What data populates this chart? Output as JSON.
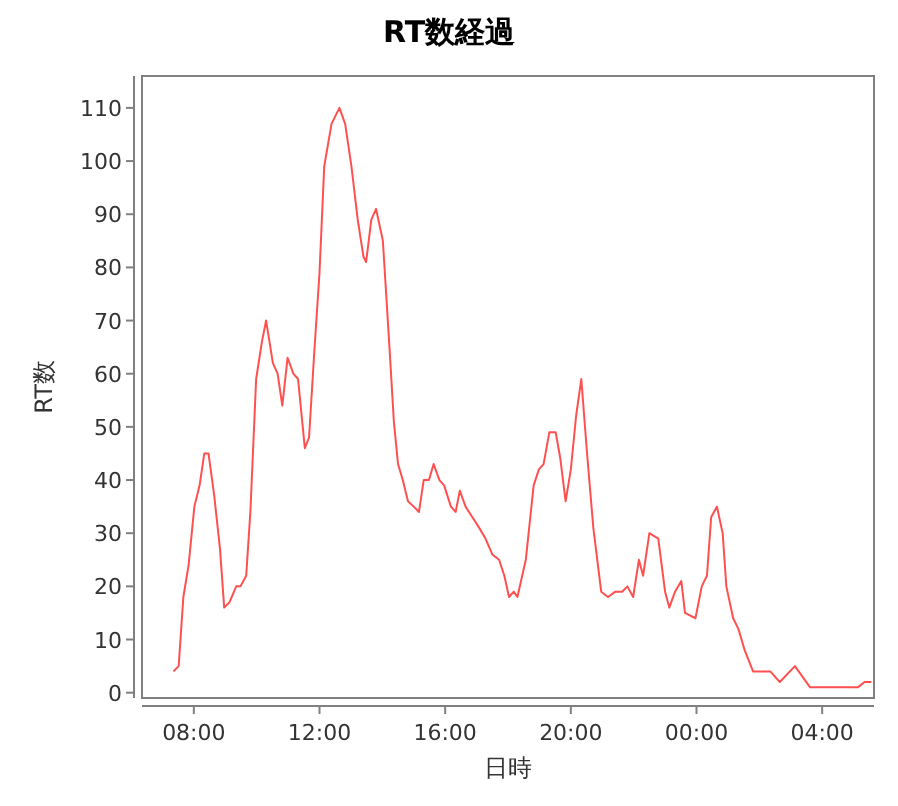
{
  "chart_data": {
    "type": "line",
    "title": "RT数経過",
    "xlabel": "日時",
    "ylabel": "RT数",
    "x": [
      "2000-01-01T07:21",
      "2000-01-01T07:31",
      "2000-01-01T07:40",
      "2000-01-01T07:50",
      "2000-01-01T08:01",
      "2000-01-01T08:11",
      "2000-01-01T08:20",
      "2000-01-01T08:28",
      "2000-01-01T08:39",
      "2000-01-01T08:50",
      "2000-01-01T08:58",
      "2000-01-01T09:08",
      "2000-01-01T09:21",
      "2000-01-01T09:29",
      "2000-01-01T09:40",
      "2000-01-01T09:48",
      "2000-01-01T09:59",
      "2000-01-01T10:10",
      "2000-01-01T10:18",
      "2000-01-01T10:31",
      "2000-01-01T10:40",
      "2000-01-01T10:49",
      "2000-01-01T10:59",
      "2000-01-01T11:10",
      "2000-01-01T11:19",
      "2000-01-01T11:32",
      "2000-01-01T11:40",
      "2000-01-01T11:50",
      "2000-01-01T12:00",
      "2000-01-01T12:09",
      "2000-01-01T12:23",
      "2000-01-01T12:38",
      "2000-01-01T12:49",
      "2000-01-01T13:01",
      "2000-01-01T13:13",
      "2000-01-01T13:24",
      "2000-01-01T13:29",
      "2000-01-01T13:39",
      "2000-01-01T13:48",
      "2000-01-01T14:01",
      "2000-01-01T14:13",
      "2000-01-01T14:22",
      "2000-01-01T14:30",
      "2000-01-01T14:39",
      "2000-01-01T14:49",
      "2000-01-01T15:00",
      "2000-01-01T15:10",
      "2000-01-01T15:19",
      "2000-01-01T15:29",
      "2000-01-01T15:38",
      "2000-01-01T15:49",
      "2000-01-01T15:58",
      "2000-01-01T16:11",
      "2000-01-01T16:20",
      "2000-01-01T16:28",
      "2000-01-01T16:39",
      "2000-01-01T16:52",
      "2000-01-01T17:05",
      "2000-01-01T17:17",
      "2000-01-01T17:30",
      "2000-01-01T17:43",
      "2000-01-01T17:53",
      "2000-01-01T18:02",
      "2000-01-01T18:11",
      "2000-01-01T18:18",
      "2000-01-01T18:34",
      "2000-01-01T18:49",
      "2000-01-01T18:59",
      "2000-01-01T19:08",
      "2000-01-01T19:19",
      "2000-01-01T19:31",
      "2000-01-01T19:40",
      "2000-01-01T19:50",
      "2000-01-01T20:00",
      "2000-01-01T20:10",
      "2000-01-01T20:20",
      "2000-01-01T20:31",
      "2000-01-01T20:43",
      "2000-01-01T20:58",
      "2000-01-01T21:11",
      "2000-01-01T21:25",
      "2000-01-01T21:38",
      "2000-01-01T21:48",
      "2000-01-01T21:59",
      "2000-01-01T22:10",
      "2000-01-01T22:18",
      "2000-01-01T22:30",
      "2000-01-01T22:47",
      "2000-01-01T23:00",
      "2000-01-01T23:08",
      "2000-01-01T23:19",
      "2000-01-01T23:31",
      "2000-01-01T23:38",
      "2000-01-01T23:58",
      "2000-01-02T00:10",
      "2000-01-02T00:20",
      "2000-01-02T00:28",
      "2000-01-02T00:39",
      "2000-01-02T00:50",
      "2000-01-02T00:57",
      "2000-01-02T01:10",
      "2000-01-02T01:20",
      "2000-01-02T01:32",
      "2000-01-02T01:48",
      "2000-01-02T02:21",
      "2000-01-02T02:39",
      "2000-01-02T03:08",
      "2000-01-02T03:37",
      "2000-01-02T04:28",
      "2000-01-02T04:53",
      "2000-01-02T05:08",
      "2000-01-02T05:21",
      "2000-01-02T05:34"
    ],
    "series": [
      {
        "color": "#ff5050",
        "values": [
          4,
          5,
          18,
          24,
          35,
          39,
          45,
          45,
          37,
          27,
          16,
          17,
          20,
          20,
          22,
          34,
          59,
          66,
          70,
          62,
          60,
          54,
          63,
          60,
          59,
          46,
          48,
          64,
          79,
          99,
          107,
          110,
          107,
          99,
          89,
          82,
          81,
          89,
          91,
          85,
          66,
          51,
          43,
          40,
          36,
          35,
          34,
          40,
          40,
          43,
          40,
          39,
          35,
          34,
          38,
          35,
          33,
          31,
          29,
          26,
          25,
          22,
          18,
          19,
          18,
          25,
          39,
          42,
          43,
          49,
          49,
          44,
          36,
          42,
          52,
          59,
          45,
          31,
          19,
          18,
          19,
          19,
          20,
          18,
          25,
          22,
          30,
          29,
          19,
          16,
          19,
          21,
          15,
          14,
          20,
          22,
          33,
          35,
          30,
          20,
          14,
          12,
          8,
          4,
          4,
          2,
          5,
          1,
          1,
          1,
          1,
          2,
          2
        ]
      }
    ],
    "xlim": [
      "2000-01-01T06:21",
      "2000-01-02T05:39"
    ],
    "ylim": [
      -1,
      116
    ],
    "xticks": [
      {
        "value": "2000-01-01T08:00",
        "label": "08:00"
      },
      {
        "value": "2000-01-01T12:00",
        "label": "12:00"
      },
      {
        "value": "2000-01-01T16:00",
        "label": "16:00"
      },
      {
        "value": "2000-01-01T20:00",
        "label": "20:00"
      },
      {
        "value": "2000-01-02T00:00",
        "label": "00:00"
      },
      {
        "value": "2000-01-02T04:00",
        "label": "04:00"
      }
    ],
    "yticks": [
      0,
      10,
      20,
      30,
      40,
      50,
      60,
      70,
      80,
      90,
      100,
      110
    ]
  }
}
